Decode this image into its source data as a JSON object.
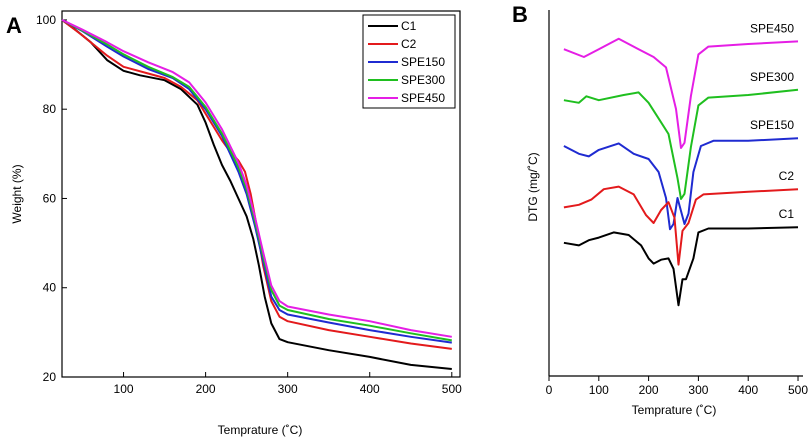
{
  "chart_data": [
    {
      "panel_label": "A",
      "type": "line",
      "xlabel": "Temprature (˚C)",
      "ylabel": "Weight (%)",
      "xlim": [
        25,
        510
      ],
      "ylim": [
        20,
        102
      ],
      "xticks": [
        100,
        200,
        300,
        400,
        500
      ],
      "yticks": [
        20,
        40,
        60,
        80,
        100
      ],
      "legend_position": "top-right",
      "series": [
        {
          "name": "C1",
          "color": "#000000",
          "points": [
            [
              25,
              100
            ],
            [
              40,
              98
            ],
            [
              60,
              95
            ],
            [
              80,
              91
            ],
            [
              100,
              88.6
            ],
            [
              120,
              87.6
            ],
            [
              150,
              86.5
            ],
            [
              170,
              84.5
            ],
            [
              190,
              81
            ],
            [
              200,
              77
            ],
            [
              210,
              72
            ],
            [
              220,
              67.5
            ],
            [
              230,
              64
            ],
            [
              240,
              60
            ],
            [
              250,
              56
            ],
            [
              258,
              51
            ],
            [
              265,
              45
            ],
            [
              272,
              38
            ],
            [
              280,
              32
            ],
            [
              290,
              28.5
            ],
            [
              300,
              27.8
            ],
            [
              350,
              26
            ],
            [
              400,
              24.5
            ],
            [
              450,
              22.7
            ],
            [
              500,
              21.8
            ]
          ]
        },
        {
          "name": "C2",
          "color": "#e31a1c",
          "points": [
            [
              25,
              100
            ],
            [
              50,
              96.5
            ],
            [
              80,
              92
            ],
            [
              100,
              89.5
            ],
            [
              130,
              88
            ],
            [
              150,
              87
            ],
            [
              170,
              85
            ],
            [
              190,
              82
            ],
            [
              200,
              79
            ],
            [
              210,
              76
            ],
            [
              220,
              73
            ],
            [
              230,
              70.5
            ],
            [
              240,
              68.5
            ],
            [
              248,
              66
            ],
            [
              255,
              61
            ],
            [
              262,
              54
            ],
            [
              270,
              45
            ],
            [
              280,
              37
            ],
            [
              290,
              33.5
            ],
            [
              300,
              32.5
            ],
            [
              350,
              30.5
            ],
            [
              400,
              29
            ],
            [
              450,
              27.5
            ],
            [
              500,
              26.3
            ]
          ]
        },
        {
          "name": "SPE150",
          "color": "#1f2bd1",
          "points": [
            [
              25,
              100
            ],
            [
              50,
              97.5
            ],
            [
              80,
              94
            ],
            [
              100,
              91.8
            ],
            [
              130,
              89
            ],
            [
              160,
              87
            ],
            [
              180,
              84.5
            ],
            [
              200,
              80
            ],
            [
              220,
              74
            ],
            [
              240,
              66
            ],
            [
              250,
              61
            ],
            [
              260,
              54
            ],
            [
              270,
              46
            ],
            [
              280,
              38
            ],
            [
              290,
              35
            ],
            [
              300,
              34
            ],
            [
              350,
              32.2
            ],
            [
              400,
              30.5
            ],
            [
              450,
              29
            ],
            [
              500,
              27.7
            ]
          ]
        },
        {
          "name": "SPE300",
          "color": "#1fbf1f",
          "points": [
            [
              25,
              100
            ],
            [
              50,
              97.6
            ],
            [
              80,
              94.5
            ],
            [
              100,
              92.3
            ],
            [
              130,
              89.5
            ],
            [
              160,
              87.2
            ],
            [
              180,
              85
            ],
            [
              200,
              80.5
            ],
            [
              220,
              74.5
            ],
            [
              240,
              67
            ],
            [
              250,
              62
            ],
            [
              260,
              55
            ],
            [
              270,
              47
            ],
            [
              280,
              39.5
            ],
            [
              290,
              36
            ],
            [
              300,
              35
            ],
            [
              350,
              33
            ],
            [
              400,
              31.5
            ],
            [
              450,
              29.8
            ],
            [
              500,
              28.2
            ]
          ]
        },
        {
          "name": "SPE450",
          "color": "#e51ee5",
          "points": [
            [
              25,
              100
            ],
            [
              50,
              97.8
            ],
            [
              80,
              95
            ],
            [
              100,
              93
            ],
            [
              130,
              90.5
            ],
            [
              160,
              88.3
            ],
            [
              180,
              86
            ],
            [
              200,
              81.5
            ],
            [
              220,
              75.5
            ],
            [
              240,
              68
            ],
            [
              250,
              63
            ],
            [
              260,
              56
            ],
            [
              270,
              48
            ],
            [
              280,
              40.5
            ],
            [
              290,
              37
            ],
            [
              300,
              35.8
            ],
            [
              350,
              34
            ],
            [
              400,
              32.5
            ],
            [
              450,
              30.5
            ],
            [
              500,
              29
            ]
          ]
        }
      ]
    },
    {
      "panel_label": "B",
      "type": "line",
      "xlabel": "Temprature (˚C)",
      "ylabel": "DTG (mg/˚C)",
      "xlim": [
        0,
        510
      ],
      "xticks": [
        0,
        100,
        200,
        300,
        400,
        500
      ],
      "y_tick_labels_shown": false,
      "series": [
        {
          "name": "SPE450",
          "color": "#e51ee5",
          "offset": 4,
          "points": [
            [
              30,
              0.8
            ],
            [
              70,
              0.5
            ],
            [
              100,
              0.8
            ],
            [
              140,
              1.2
            ],
            [
              180,
              0.8
            ],
            [
              210,
              0.5
            ],
            [
              235,
              0.1
            ],
            [
              255,
              -1.5
            ],
            [
              265,
              -3.0
            ],
            [
              272,
              -2.8
            ],
            [
              285,
              -1.0
            ],
            [
              300,
              0.6
            ],
            [
              320,
              0.9
            ],
            [
              400,
              1.0
            ],
            [
              500,
              1.1
            ]
          ]
        },
        {
          "name": "SPE300",
          "color": "#1fbf1f",
          "offset": 3,
          "points": [
            [
              30,
              0.8
            ],
            [
              60,
              0.7
            ],
            [
              75,
              0.95
            ],
            [
              100,
              0.8
            ],
            [
              150,
              1.0
            ],
            [
              180,
              1.1
            ],
            [
              200,
              0.7
            ],
            [
              220,
              0.1
            ],
            [
              240,
              -0.5
            ],
            [
              258,
              -2.2
            ],
            [
              265,
              -3.0
            ],
            [
              272,
              -2.8
            ],
            [
              285,
              -1.0
            ],
            [
              300,
              0.6
            ],
            [
              320,
              0.9
            ],
            [
              400,
              1.0
            ],
            [
              500,
              1.2
            ]
          ]
        },
        {
          "name": "SPE150",
          "color": "#1f2bd1",
          "offset": 2,
          "points": [
            [
              30,
              1.0
            ],
            [
              60,
              0.7
            ],
            [
              80,
              0.6
            ],
            [
              100,
              0.85
            ],
            [
              140,
              1.1
            ],
            [
              170,
              0.7
            ],
            [
              200,
              0.5
            ],
            [
              220,
              0.0
            ],
            [
              235,
              -1.0
            ],
            [
              243,
              -2.2
            ],
            [
              250,
              -2.0
            ],
            [
              258,
              -1.0
            ],
            [
              265,
              -1.5
            ],
            [
              272,
              -2.0
            ],
            [
              280,
              -1.6
            ],
            [
              290,
              0.0
            ],
            [
              305,
              1.0
            ],
            [
              330,
              1.2
            ],
            [
              400,
              1.2
            ],
            [
              500,
              1.3
            ]
          ]
        },
        {
          "name": "C2",
          "color": "#e31a1c",
          "offset": 1,
          "points": [
            [
              30,
              0.6
            ],
            [
              60,
              0.7
            ],
            [
              85,
              0.9
            ],
            [
              110,
              1.3
            ],
            [
              140,
              1.4
            ],
            [
              170,
              1.1
            ],
            [
              195,
              0.3
            ],
            [
              210,
              0.0
            ],
            [
              225,
              0.5
            ],
            [
              240,
              0.8
            ],
            [
              252,
              0.2
            ],
            [
              260,
              -1.6
            ],
            [
              268,
              -0.3
            ],
            [
              280,
              0.0
            ],
            [
              295,
              0.9
            ],
            [
              310,
              1.1
            ],
            [
              400,
              1.2
            ],
            [
              500,
              1.3
            ]
          ]
        },
        {
          "name": "C1",
          "color": "#000000",
          "offset": 0,
          "points": [
            [
              30,
              1.2
            ],
            [
              60,
              1.1
            ],
            [
              80,
              1.3
            ],
            [
              100,
              1.4
            ],
            [
              130,
              1.6
            ],
            [
              160,
              1.5
            ],
            [
              185,
              1.1
            ],
            [
              200,
              0.6
            ],
            [
              210,
              0.4
            ],
            [
              225,
              0.55
            ],
            [
              240,
              0.6
            ],
            [
              250,
              0.2
            ],
            [
              260,
              -1.2
            ],
            [
              268,
              -0.2
            ],
            [
              275,
              -0.2
            ],
            [
              290,
              0.6
            ],
            [
              300,
              1.6
            ],
            [
              320,
              1.75
            ],
            [
              400,
              1.75
            ],
            [
              500,
              1.8
            ]
          ]
        }
      ]
    }
  ]
}
